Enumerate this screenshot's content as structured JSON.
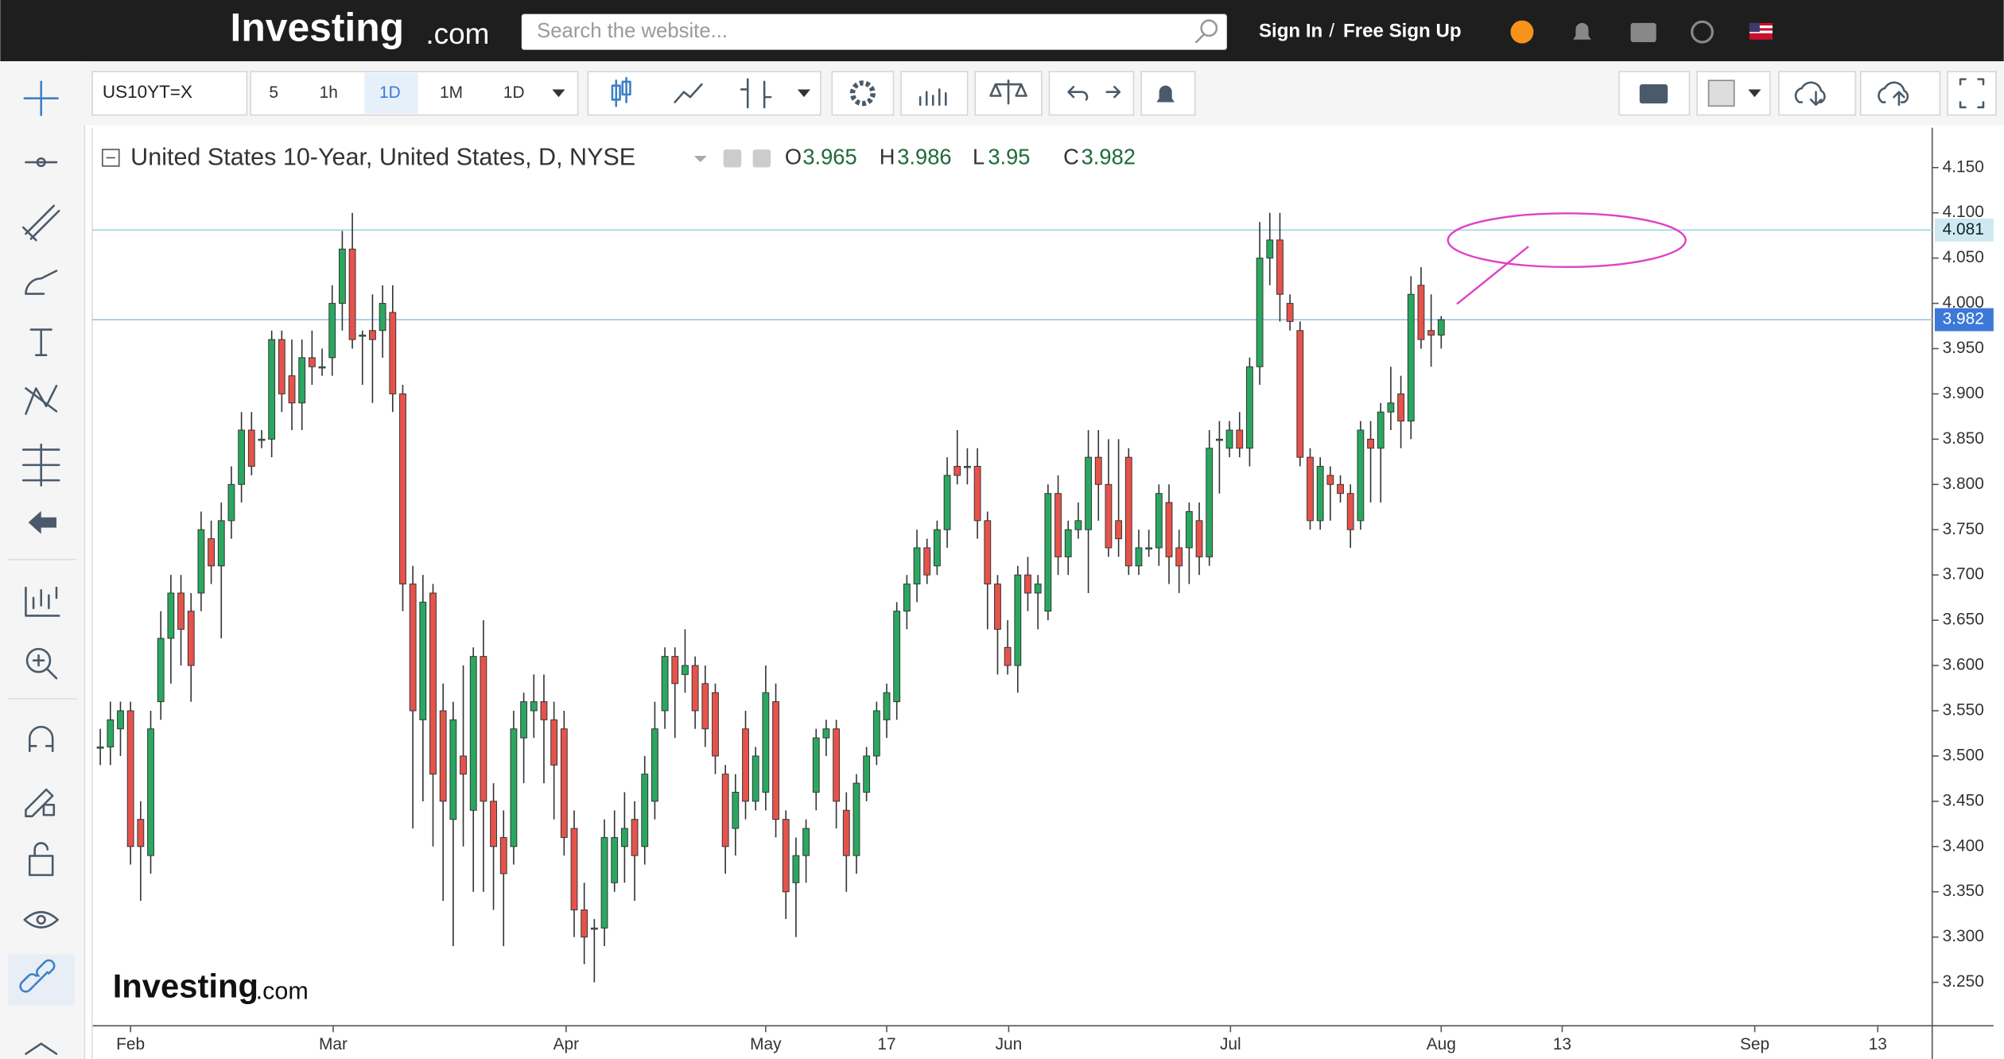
{
  "header": {
    "logo": "Investing",
    "logo_suffix": ".com",
    "search_placeholder": "Search the website...",
    "sign_in": "Sign In",
    "separator": "/",
    "sign_up": "Free Sign Up"
  },
  "toolbar": {
    "symbol": "US10YT=X",
    "intervals": [
      "5",
      "1h",
      "1D",
      "1M",
      "1D"
    ]
  },
  "chart_data": {
    "type": "candlestick",
    "title": "United States 10-Year, United States, D, NYSE",
    "ohlc_labels": [
      "O",
      "H",
      "L",
      "C"
    ],
    "watermark": "Investing",
    "watermark_suffix": ".com",
    "open": [
      3.51,
      3.51,
      3.53,
      3.55,
      3.43,
      3.39,
      3.56,
      3.63,
      3.68,
      3.66,
      3.68,
      3.74,
      3.71,
      3.76,
      3.8,
      3.86,
      3.85,
      3.85,
      3.96,
      3.92,
      3.89,
      3.94,
      3.93,
      3.94,
      4.0,
      4.06,
      3.965,
      3.97,
      3.97,
      3.99,
      3.9,
      3.69,
      3.54,
      3.68,
      3.55,
      3.43,
      3.5,
      3.44,
      3.61,
      3.45,
      3.41,
      3.4,
      3.52,
      3.55,
      3.56,
      3.54,
      3.53,
      3.42,
      3.33,
      3.31,
      3.31,
      3.36,
      3.4,
      3.43,
      3.4,
      3.45,
      3.55,
      3.61,
      3.59,
      3.6,
      3.58,
      3.57,
      3.48,
      3.42,
      3.53,
      3.45,
      3.46,
      3.56,
      3.43,
      3.36,
      3.39,
      3.46,
      3.52,
      3.53,
      3.44,
      3.39,
      3.46,
      3.5,
      3.54,
      3.56,
      3.66,
      3.69,
      3.73,
      3.71,
      3.75,
      3.82,
      3.82,
      3.82,
      3.76,
      3.69,
      3.62,
      3.6,
      3.7,
      3.68,
      3.66,
      3.79,
      3.72,
      3.75,
      3.75,
      3.83,
      3.8,
      3.76,
      3.83,
      3.71,
      3.73,
      3.73,
      3.78,
      3.73,
      3.73,
      3.76,
      3.72,
      3.85,
      3.84,
      3.86,
      3.84,
      3.93,
      4.05,
      4.07,
      4.0,
      3.97,
      3.83,
      3.76,
      3.81,
      3.8,
      3.79,
      3.76,
      3.85,
      3.84,
      3.88,
      3.9,
      3.87,
      4.02,
      3.97,
      3.965
    ],
    "high": [
      3.53,
      3.56,
      3.56,
      3.56,
      3.45,
      3.55,
      3.66,
      3.7,
      3.7,
      3.68,
      3.77,
      3.76,
      3.78,
      3.82,
      3.88,
      3.88,
      3.86,
      3.97,
      3.97,
      3.96,
      3.96,
      3.97,
      3.95,
      4.02,
      4.08,
      4.1,
      3.97,
      4.01,
      4.02,
      4.02,
      3.91,
      3.71,
      3.7,
      3.69,
      3.58,
      3.56,
      3.6,
      3.62,
      3.65,
      3.47,
      3.44,
      3.55,
      3.57,
      3.59,
      3.59,
      3.56,
      3.55,
      3.44,
      3.36,
      3.32,
      3.43,
      3.44,
      3.46,
      3.45,
      3.5,
      3.56,
      3.62,
      3.62,
      3.64,
      3.61,
      3.6,
      3.58,
      3.49,
      3.48,
      3.55,
      3.51,
      3.6,
      3.58,
      3.44,
      3.41,
      3.43,
      3.53,
      3.54,
      3.54,
      3.46,
      3.48,
      3.51,
      3.56,
      3.58,
      3.67,
      3.7,
      3.75,
      3.74,
      3.76,
      3.83,
      3.86,
      3.84,
      3.84,
      3.77,
      3.7,
      3.65,
      3.71,
      3.72,
      3.7,
      3.8,
      3.81,
      3.76,
      3.78,
      3.86,
      3.86,
      3.85,
      3.85,
      3.84,
      3.75,
      3.75,
      3.8,
      3.8,
      3.75,
      3.78,
      3.78,
      3.86,
      3.87,
      3.87,
      3.88,
      3.94,
      4.09,
      4.1,
      4.1,
      4.01,
      3.98,
      3.84,
      3.83,
      3.82,
      3.81,
      3.8,
      3.87,
      3.87,
      3.89,
      3.93,
      3.92,
      4.03,
      4.04,
      4.01,
      3.986
    ],
    "low": [
      3.49,
      3.49,
      3.5,
      3.38,
      3.34,
      3.37,
      3.54,
      3.58,
      3.6,
      3.56,
      3.66,
      3.69,
      3.63,
      3.74,
      3.78,
      3.81,
      3.84,
      3.83,
      3.88,
      3.86,
      3.86,
      3.91,
      3.92,
      3.92,
      3.97,
      3.95,
      3.91,
      3.89,
      3.94,
      3.88,
      3.66,
      3.42,
      3.45,
      3.4,
      3.34,
      3.29,
      3.4,
      3.35,
      3.35,
      3.33,
      3.29,
      3.38,
      3.47,
      3.52,
      3.47,
      3.43,
      3.39,
      3.3,
      3.27,
      3.25,
      3.29,
      3.35,
      3.36,
      3.34,
      3.38,
      3.43,
      3.53,
      3.52,
      3.57,
      3.53,
      3.51,
      3.48,
      3.37,
      3.39,
      3.43,
      3.44,
      3.44,
      3.41,
      3.32,
      3.3,
      3.36,
      3.44,
      3.5,
      3.42,
      3.35,
      3.37,
      3.45,
      3.49,
      3.52,
      3.54,
      3.64,
      3.67,
      3.69,
      3.7,
      3.73,
      3.8,
      3.8,
      3.74,
      3.64,
      3.59,
      3.59,
      3.57,
      3.66,
      3.64,
      3.65,
      3.7,
      3.7,
      3.74,
      3.68,
      3.76,
      3.72,
      3.72,
      3.7,
      3.7,
      3.72,
      3.71,
      3.69,
      3.68,
      3.69,
      3.7,
      3.71,
      3.79,
      3.83,
      3.83,
      3.82,
      3.91,
      4.02,
      3.98,
      3.97,
      3.82,
      3.75,
      3.75,
      3.76,
      3.78,
      3.73,
      3.75,
      3.78,
      3.78,
      3.86,
      3.84,
      3.85,
      3.95,
      3.93,
      3.95
    ],
    "close": [
      3.51,
      3.54,
      3.55,
      3.4,
      3.4,
      3.53,
      3.63,
      3.68,
      3.64,
      3.6,
      3.75,
      3.71,
      3.76,
      3.8,
      3.86,
      3.82,
      3.85,
      3.96,
      3.9,
      3.89,
      3.94,
      3.93,
      3.93,
      4.0,
      4.06,
      3.96,
      3.965,
      3.96,
      4.0,
      3.9,
      3.69,
      3.55,
      3.67,
      3.48,
      3.45,
      3.54,
      3.48,
      3.61,
      3.45,
      3.4,
      3.37,
      3.53,
      3.56,
      3.56,
      3.54,
      3.49,
      3.41,
      3.33,
      3.3,
      3.31,
      3.41,
      3.41,
      3.42,
      3.39,
      3.48,
      3.53,
      3.61,
      3.58,
      3.6,
      3.55,
      3.53,
      3.5,
      3.4,
      3.46,
      3.45,
      3.5,
      3.57,
      3.43,
      3.35,
      3.39,
      3.42,
      3.52,
      3.53,
      3.45,
      3.39,
      3.47,
      3.5,
      3.55,
      3.57,
      3.66,
      3.69,
      3.73,
      3.7,
      3.75,
      3.81,
      3.81,
      3.82,
      3.76,
      3.69,
      3.64,
      3.6,
      3.7,
      3.68,
      3.69,
      3.79,
      3.72,
      3.75,
      3.76,
      3.83,
      3.8,
      3.73,
      3.74,
      3.71,
      3.73,
      3.73,
      3.79,
      3.72,
      3.71,
      3.77,
      3.72,
      3.84,
      3.85,
      3.86,
      3.84,
      3.93,
      4.05,
      4.07,
      4.01,
      3.98,
      3.83,
      3.76,
      3.82,
      3.8,
      3.79,
      3.75,
      3.86,
      3.84,
      3.88,
      3.89,
      3.87,
      4.01,
      3.96,
      3.965,
      3.982
    ],
    "up_color": "#2aa760",
    "down_color": "#e5534b",
    "ylim": [
      3.202,
      4.194
    ],
    "yticks": [
      {
        "value": 3.25,
        "label": "3.250"
      },
      {
        "value": 3.3,
        "label": "3.300"
      },
      {
        "value": 3.35,
        "label": "3.350"
      },
      {
        "value": 3.4,
        "label": "3.400"
      },
      {
        "value": 3.45,
        "label": "3.450"
      },
      {
        "value": 3.5,
        "label": "3.500"
      },
      {
        "value": 3.55,
        "label": "3.550"
      },
      {
        "value": 3.6,
        "label": "3.600"
      },
      {
        "value": 3.65,
        "label": "3.650"
      },
      {
        "value": 3.7,
        "label": "3.700"
      },
      {
        "value": 3.75,
        "label": "3.750"
      },
      {
        "value": 3.8,
        "label": "3.800"
      },
      {
        "value": 3.85,
        "label": "3.850"
      },
      {
        "value": 3.9,
        "label": "3.900"
      },
      {
        "value": 3.95,
        "label": "3.950"
      },
      {
        "value": 4.0,
        "label": "4.000"
      },
      {
        "value": 4.05,
        "label": "4.050"
      },
      {
        "value": 4.1,
        "label": "4.100"
      },
      {
        "value": 4.15,
        "label": "4.150"
      }
    ],
    "xlim": [
      -0.8,
      181.7
    ],
    "xticks": [
      {
        "value": 3,
        "label": "Feb"
      },
      {
        "value": 23.1,
        "label": "Mar"
      },
      {
        "value": 46.2,
        "label": "Apr"
      },
      {
        "value": 66,
        "label": "May"
      },
      {
        "value": 78,
        "label": "17"
      },
      {
        "value": 90.1,
        "label": "Jun"
      },
      {
        "value": 112.1,
        "label": "Jul"
      },
      {
        "value": 133,
        "label": "Aug"
      },
      {
        "value": 145,
        "label": "13"
      },
      {
        "value": 164.1,
        "label": "Sep"
      },
      {
        "value": 176.3,
        "label": "13"
      }
    ],
    "reference_lines": [
      4.081
    ],
    "grid": false
  }
}
